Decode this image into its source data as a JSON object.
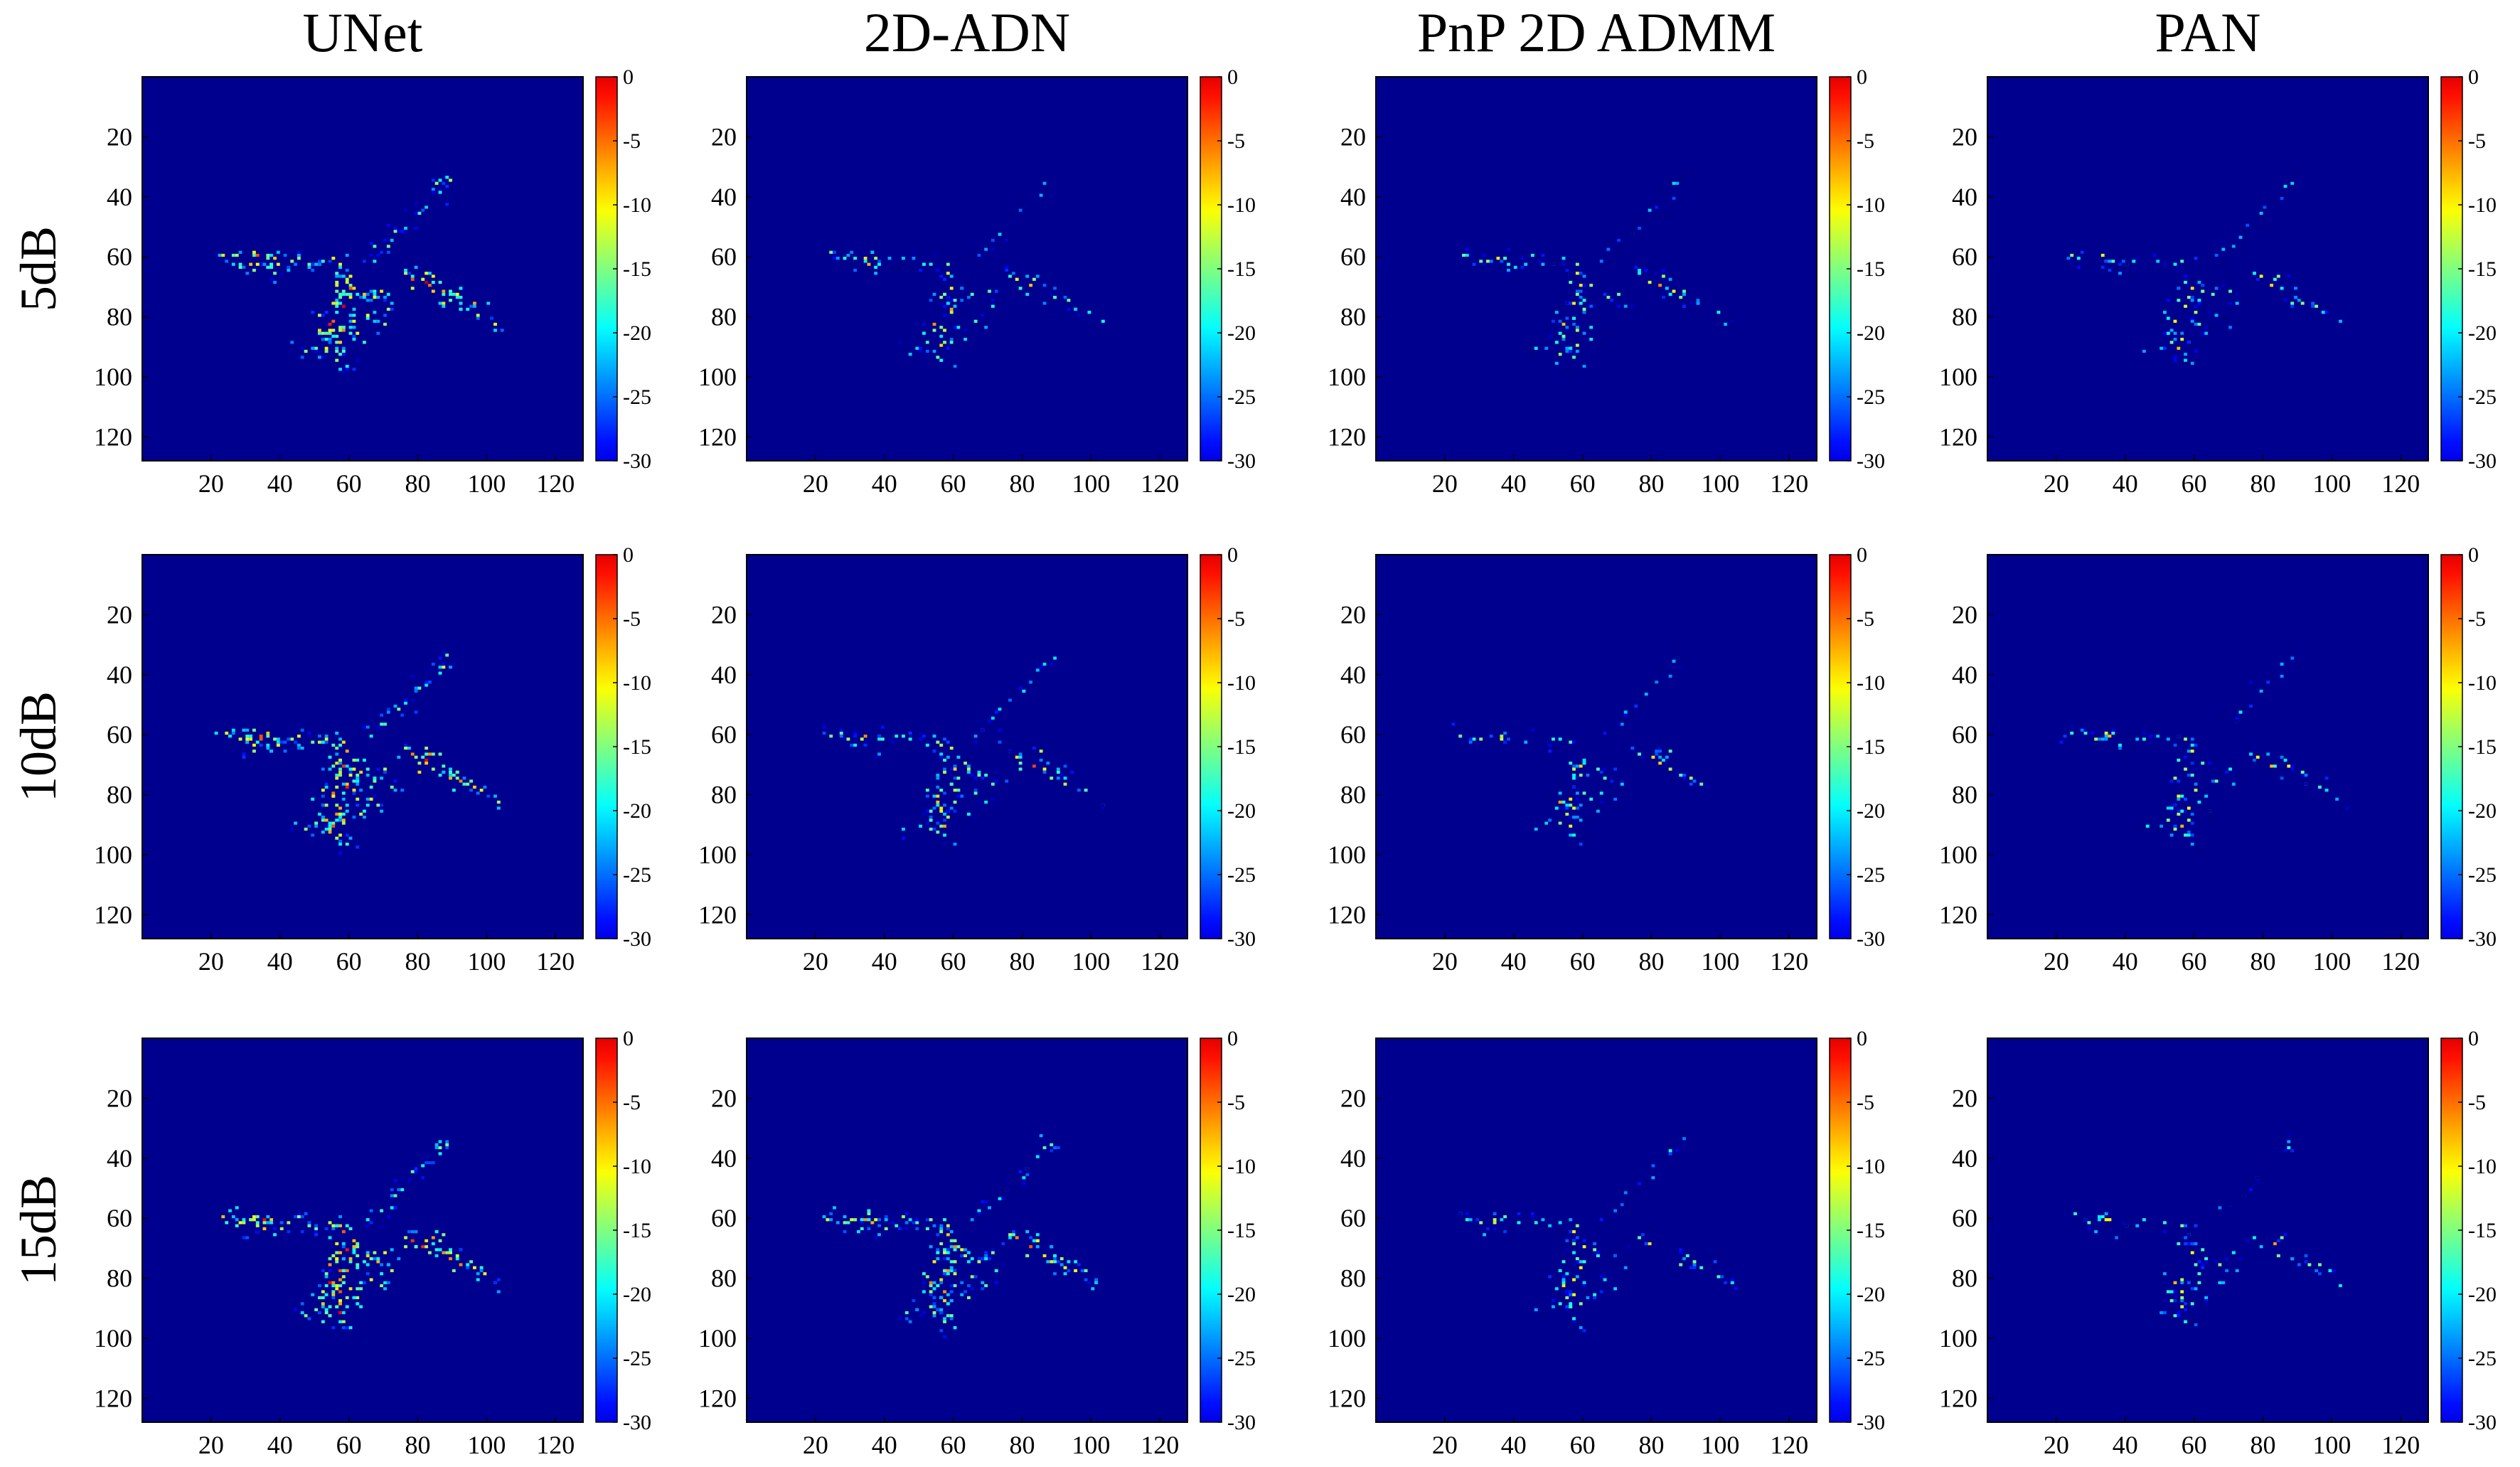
{
  "figure": {
    "columns": [
      "UNet",
      "2D-ADN",
      "PnP 2D ADMM",
      "PAN"
    ],
    "rows": [
      "5dB",
      "10dB",
      "15dB"
    ]
  },
  "colors": {
    "background": "#00008F",
    "colormap": "jet"
  },
  "chart_data": {
    "type": "heatmap",
    "layout": "grid 3 rows x 4 columns",
    "columns": [
      "UNet",
      "2D-ADN",
      "PnP 2D ADMM",
      "PAN"
    ],
    "rows": [
      "5dB",
      "10dB",
      "15dB"
    ],
    "x_ticks": [
      20,
      40,
      60,
      80,
      100,
      120
    ],
    "y_ticks": [
      20,
      40,
      60,
      80,
      100,
      120
    ],
    "x_range": [
      0,
      128
    ],
    "y_range": [
      0,
      128
    ],
    "colorbar": {
      "ticks": [
        0,
        -5,
        -10,
        -15,
        -20,
        -25,
        -30
      ],
      "range": [
        -30,
        0
      ],
      "units": "dB",
      "colormap": "jet"
    },
    "strength": {
      "UNet": [
        1.0,
        1.0,
        1.0
      ],
      "2D-ADN": [
        0.7,
        0.85,
        1.05
      ],
      "PnP 2D ADMM": [
        0.65,
        0.65,
        0.65
      ],
      "PAN": [
        0.65,
        0.65,
        0.65
      ]
    },
    "target_points": [
      {
        "x": 88,
        "y": 34,
        "db": -18
      },
      {
        "x": 86,
        "y": 36,
        "db": -17
      },
      {
        "x": 85,
        "y": 39,
        "db": -20
      },
      {
        "x": 81,
        "y": 43,
        "db": -21
      },
      {
        "x": 79,
        "y": 45,
        "db": -19
      },
      {
        "x": 76,
        "y": 49,
        "db": -22
      },
      {
        "x": 73,
        "y": 52,
        "db": -18
      },
      {
        "x": 71,
        "y": 55,
        "db": -20
      },
      {
        "x": 68,
        "y": 57,
        "db": -19
      },
      {
        "x": 66,
        "y": 60,
        "db": -21
      },
      {
        "x": 24,
        "y": 59,
        "db": -14
      },
      {
        "x": 27,
        "y": 60,
        "db": -16
      },
      {
        "x": 30,
        "y": 61,
        "db": -12
      },
      {
        "x": 33,
        "y": 60,
        "db": -10
      },
      {
        "x": 35,
        "y": 61,
        "db": -8
      },
      {
        "x": 37,
        "y": 60,
        "db": -13
      },
      {
        "x": 39,
        "y": 62,
        "db": -15
      },
      {
        "x": 42,
        "y": 61,
        "db": -17
      },
      {
        "x": 45,
        "y": 60,
        "db": -16
      },
      {
        "x": 48,
        "y": 61,
        "db": -18
      },
      {
        "x": 51,
        "y": 62,
        "db": -17
      },
      {
        "x": 54,
        "y": 61,
        "db": -15
      },
      {
        "x": 32,
        "y": 64,
        "db": -19
      },
      {
        "x": 38,
        "y": 65,
        "db": -20
      },
      {
        "x": 57,
        "y": 62,
        "db": -12
      },
      {
        "x": 58,
        "y": 65,
        "db": -10
      },
      {
        "x": 56,
        "y": 68,
        "db": -14
      },
      {
        "x": 59,
        "y": 70,
        "db": -9
      },
      {
        "x": 57,
        "y": 72,
        "db": -11
      },
      {
        "x": 55,
        "y": 74,
        "db": -13
      },
      {
        "x": 58,
        "y": 76,
        "db": -8
      },
      {
        "x": 60,
        "y": 78,
        "db": -12
      },
      {
        "x": 56,
        "y": 80,
        "db": -9
      },
      {
        "x": 54,
        "y": 82,
        "db": -7
      },
      {
        "x": 57,
        "y": 84,
        "db": -10
      },
      {
        "x": 55,
        "y": 86,
        "db": -11
      },
      {
        "x": 58,
        "y": 88,
        "db": -12
      },
      {
        "x": 53,
        "y": 88,
        "db": -14
      },
      {
        "x": 56,
        "y": 90,
        "db": -8
      },
      {
        "x": 54,
        "y": 92,
        "db": -13
      },
      {
        "x": 57,
        "y": 94,
        "db": -16
      },
      {
        "x": 60,
        "y": 74,
        "db": -14
      },
      {
        "x": 61,
        "y": 82,
        "db": -15
      },
      {
        "x": 52,
        "y": 78,
        "db": -17
      },
      {
        "x": 50,
        "y": 90,
        "db": -19
      },
      {
        "x": 46,
        "y": 91,
        "db": -18
      },
      {
        "x": 62,
        "y": 70,
        "db": -13
      },
      {
        "x": 63,
        "y": 86,
        "db": -17
      },
      {
        "x": 52,
        "y": 84,
        "db": -15
      },
      {
        "x": 59,
        "y": 96,
        "db": -20
      },
      {
        "x": 64,
        "y": 72,
        "db": -14
      },
      {
        "x": 67,
        "y": 74,
        "db": -12
      },
      {
        "x": 70,
        "y": 72,
        "db": -15
      },
      {
        "x": 66,
        "y": 80,
        "db": -16
      },
      {
        "x": 69,
        "y": 82,
        "db": -18
      },
      {
        "x": 72,
        "y": 76,
        "db": -17
      },
      {
        "x": 76,
        "y": 65,
        "db": -15
      },
      {
        "x": 79,
        "y": 67,
        "db": -9
      },
      {
        "x": 82,
        "y": 69,
        "db": -6
      },
      {
        "x": 84,
        "y": 66,
        "db": -13
      },
      {
        "x": 86,
        "y": 71,
        "db": -10
      },
      {
        "x": 88,
        "y": 74,
        "db": -12
      },
      {
        "x": 90,
        "y": 72,
        "db": -14
      },
      {
        "x": 92,
        "y": 75,
        "db": -11
      },
      {
        "x": 95,
        "y": 76,
        "db": -13
      },
      {
        "x": 98,
        "y": 78,
        "db": -15
      },
      {
        "x": 102,
        "y": 82,
        "db": -17
      }
    ],
    "noise": "sparse low-level scatter around target, density increases with SNR for 2D-ADN"
  }
}
